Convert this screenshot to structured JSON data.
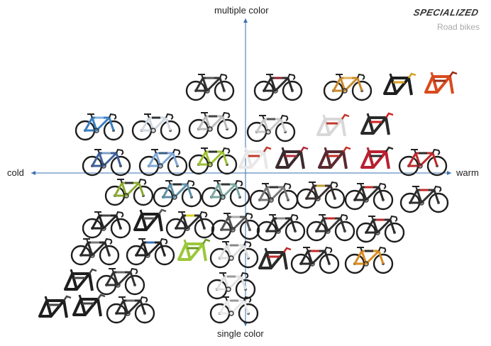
{
  "brand": "SPECIALIZED",
  "subtitle": "Road bikes",
  "axes": {
    "top": "multiple color",
    "bottom": "single color",
    "left": "cold",
    "right": "warm",
    "color": "#3a6fb0"
  },
  "items": [
    {
      "type": "bike",
      "frame": "#333333",
      "accent": "#555555"
    },
    {
      "type": "bike",
      "frame": "#2b2b2b",
      "accent": "#8a1f2a"
    },
    {
      "type": "bike",
      "frame": "#c98a2a",
      "accent": "#e0b05a"
    },
    {
      "type": "frame",
      "frame": "#1e1e1e",
      "accent": "#d4a020"
    },
    {
      "type": "frame",
      "frame": "#d84a1e",
      "accent": "#9a2a10"
    },
    {
      "type": "bike",
      "frame": "#3a7fc0",
      "accent": "#7fb0e0"
    },
    {
      "type": "bike",
      "frame": "#d0d8e0",
      "accent": "#333333"
    },
    {
      "type": "bike",
      "frame": "#bbbbbb",
      "accent": "#444444"
    },
    {
      "type": "bike",
      "frame": "#c8c8c8",
      "accent": "#555555"
    },
    {
      "type": "frame",
      "frame": "#d8d8d8",
      "accent": "#c0392b"
    },
    {
      "type": "frame",
      "frame": "#2a2a2a",
      "accent": "#d02020"
    },
    {
      "type": "bike",
      "frame": "#3d5f9a",
      "accent": "#7f9fc8"
    },
    {
      "type": "bike",
      "frame": "#7fa8d8",
      "accent": "#3a5a80"
    },
    {
      "type": "bike",
      "frame": "#9ac030",
      "accent": "#333333"
    },
    {
      "type": "frame",
      "frame": "#e8e8e8",
      "accent": "#c0392b"
    },
    {
      "type": "frame",
      "frame": "#3a2a2e",
      "accent": "#b02a3a"
    },
    {
      "type": "frame",
      "frame": "#5a2a30",
      "accent": "#c0302a"
    },
    {
      "type": "frame",
      "frame": "#b82030",
      "accent": "#2a2a2a"
    },
    {
      "type": "bike",
      "frame": "#c02828",
      "accent": "#2a2a2a"
    },
    {
      "type": "bike",
      "frame": "#8aa830",
      "accent": "#333333"
    },
    {
      "type": "bike",
      "frame": "#5f8fa8",
      "accent": "#2a2a2a"
    },
    {
      "type": "bike",
      "frame": "#7aa8a0",
      "accent": "#333333"
    },
    {
      "type": "bike",
      "frame": "#777777",
      "accent": "#333333"
    },
    {
      "type": "bike",
      "frame": "#3a3030",
      "accent": "#c0a030"
    },
    {
      "type": "bike",
      "frame": "#2a2a2a",
      "accent": "#c02828"
    },
    {
      "type": "bike",
      "frame": "#303030",
      "accent": "#c02828"
    },
    {
      "type": "bike",
      "frame": "#222222",
      "accent": "#444444"
    },
    {
      "type": "frame",
      "frame": "#1e1e1e",
      "accent": "#555555"
    },
    {
      "type": "bike",
      "frame": "#2a2a2a",
      "accent": "#d8d020"
    },
    {
      "type": "bike",
      "frame": "#555555",
      "accent": "#aaaaaa"
    },
    {
      "type": "bike",
      "frame": "#2a2a2a",
      "accent": "#888888"
    },
    {
      "type": "bike",
      "frame": "#333333",
      "accent": "#c02828"
    },
    {
      "type": "bike",
      "frame": "#2a2a2a",
      "accent": "#b02a2a"
    },
    {
      "type": "bike",
      "frame": "#2a2a2a",
      "accent": "#777777"
    },
    {
      "type": "bike",
      "frame": "#222222",
      "accent": "#3a6fb0"
    },
    {
      "type": "frame",
      "frame": "#9ac83a",
      "accent": "#6a9a20"
    },
    {
      "type": "bike",
      "frame": "#dcdcdc",
      "accent": "#888888"
    },
    {
      "type": "frame",
      "frame": "#2a2a2a",
      "accent": "#c02828"
    },
    {
      "type": "bike",
      "frame": "#2a2a2a",
      "accent": "#c02828"
    },
    {
      "type": "bike",
      "frame": "#d88a20",
      "accent": "#2a2a2a"
    },
    {
      "type": "frame",
      "frame": "#1e1e1e",
      "accent": "#444444"
    },
    {
      "type": "bike",
      "frame": "#333333",
      "accent": "#666666"
    },
    {
      "type": "bike",
      "frame": "#e0e0e0",
      "accent": "#999999"
    },
    {
      "type": "frame",
      "frame": "#1e1e1e",
      "accent": "#444444"
    },
    {
      "type": "frame",
      "frame": "#1e1e1e",
      "accent": "#444444"
    },
    {
      "type": "bike",
      "frame": "#2a2a2a",
      "accent": "#666666"
    },
    {
      "type": "bike",
      "frame": "#e8e8e8",
      "accent": "#999999"
    }
  ]
}
